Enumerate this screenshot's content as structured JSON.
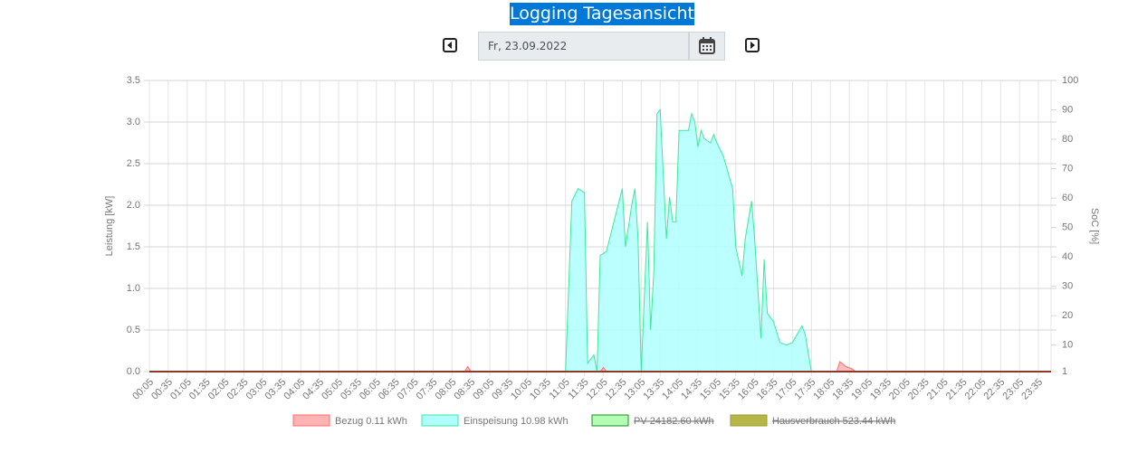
{
  "header": {
    "title": "Logging Tagesansicht",
    "date": "Fr, 23.09.2022"
  },
  "chart_data": {
    "type": "area",
    "ylabel": "Leistung [kW]",
    "y2label": "SoC [%]",
    "xlim": [
      "00:05",
      "23:55"
    ],
    "xticks": [
      "00:05",
      "00:35",
      "01:05",
      "01:35",
      "02:05",
      "02:35",
      "03:05",
      "03:35",
      "04:05",
      "04:35",
      "05:05",
      "05:35",
      "06:05",
      "06:35",
      "07:05",
      "07:35",
      "08:05",
      "08:35",
      "09:05",
      "09:35",
      "10:05",
      "10:35",
      "11:05",
      "11:35",
      "12:05",
      "12:35",
      "13:05",
      "13:35",
      "14:05",
      "14:35",
      "15:05",
      "15:35",
      "16:05",
      "16:35",
      "17:05",
      "17:35",
      "18:05",
      "18:35",
      "19:05",
      "19:35",
      "20:05",
      "20:35",
      "21:05",
      "21:35",
      "22:05",
      "22:35",
      "23:05",
      "23:35"
    ],
    "ylim": [
      0,
      3.5
    ],
    "yticks": [
      {
        "value": 0,
        "label": "0.0"
      },
      {
        "value": 0.5,
        "label": "0.5"
      },
      {
        "value": 1,
        "label": "1.0"
      },
      {
        "value": 1.5,
        "label": "1.5"
      },
      {
        "value": 2,
        "label": "2.0"
      },
      {
        "value": 2.5,
        "label": "2.5"
      },
      {
        "value": 3,
        "label": "3.0"
      },
      {
        "value": 3.5,
        "label": "3.5"
      }
    ],
    "y2lim": [
      1,
      100
    ],
    "y2ticks": [
      1,
      10,
      20,
      30,
      40,
      50,
      60,
      70,
      80,
      90,
      100
    ],
    "grid": true,
    "x": [
      "00:05",
      "08:25",
      "08:30",
      "08:35",
      "11:05",
      "11:15",
      "11:25",
      "11:35",
      "11:40",
      "11:50",
      "11:55",
      "12:00",
      "12:05",
      "12:10",
      "12:25",
      "12:35",
      "12:40",
      "12:50",
      "12:55",
      "13:00",
      "13:05",
      "13:15",
      "13:20",
      "13:25",
      "13:30",
      "13:35",
      "13:45",
      "13:50",
      "13:55",
      "14:00",
      "14:05",
      "14:20",
      "14:25",
      "14:30",
      "14:35",
      "14:40",
      "14:45",
      "14:55",
      "15:00",
      "15:05",
      "15:15",
      "15:30",
      "15:35",
      "15:45",
      "15:50",
      "16:00",
      "16:05",
      "16:15",
      "16:20",
      "16:25",
      "16:35",
      "16:45",
      "16:55",
      "17:05",
      "17:20",
      "17:25",
      "17:35",
      "18:15",
      "18:20",
      "18:30",
      "18:40",
      "18:45",
      "23:55"
    ],
    "series": [
      {
        "name": "Bezug 0.11 kWh",
        "color": "#ff6b6b",
        "fill": "#ffb3b3",
        "values": [
          0,
          0,
          0.06,
          0,
          0,
          0,
          0,
          0,
          0,
          0,
          0,
          0,
          0.05,
          0,
          0,
          0,
          0,
          0,
          0,
          0,
          0,
          0,
          0,
          0,
          0,
          0,
          0,
          0,
          0,
          0,
          0,
          0,
          0,
          0,
          0,
          0,
          0,
          0,
          0,
          0,
          0,
          0,
          0,
          0,
          0,
          0,
          0,
          0,
          0,
          0,
          0,
          0,
          0,
          0,
          0,
          0,
          0,
          0,
          0.12,
          0.06,
          0.03,
          0,
          0
        ]
      },
      {
        "name": "Einspeisung 10.98 kWh",
        "color": "#3ee89a",
        "fill": "#b0ffff",
        "values": [
          0,
          0,
          0,
          0,
          0,
          2.05,
          2.2,
          2.15,
          0.1,
          0.2,
          0,
          1.4,
          1.42,
          1.45,
          1.9,
          2.2,
          1.5,
          2.0,
          2.2,
          1.6,
          0,
          1.8,
          0.5,
          1.2,
          3.1,
          3.15,
          1.6,
          2.1,
          1.8,
          1.8,
          2.9,
          2.9,
          3.1,
          3.0,
          2.7,
          2.9,
          2.8,
          2.75,
          2.85,
          2.75,
          2.6,
          2.2,
          1.5,
          1.15,
          1.6,
          2.05,
          1.6,
          0.4,
          1.35,
          0.7,
          0.6,
          0.35,
          0.32,
          0.35,
          0.55,
          0.45,
          0,
          0,
          0,
          0,
          0,
          0,
          0
        ]
      },
      {
        "name": "PV 24182.60 kWh",
        "color": "#1e8c1e",
        "fill": "#b3ffb3",
        "hidden": true
      },
      {
        "name": "Hausverbrauch 523.44 kWh",
        "color": "#9a9a30",
        "fill": "#b5b54a",
        "hidden": true
      }
    ]
  }
}
